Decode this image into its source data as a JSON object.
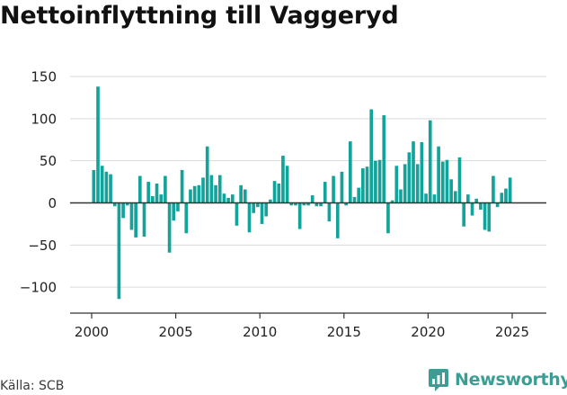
{
  "title": "Nettoinflyttning till Vaggeryd",
  "source": "Källa: SCB",
  "brand": {
    "name": "Newsworthy",
    "icon": "newsworthy-logo-icon"
  },
  "colors": {
    "bar": "#12a39a",
    "grid": "#d9d9d9",
    "zero": "#333333",
    "axis": "#333333"
  },
  "chart_data": {
    "type": "bar",
    "title": "Nettoinflyttning till Vaggeryd",
    "xlabel": "",
    "ylabel": "",
    "ylim": [
      -130,
      160
    ],
    "xlim": [
      1998.9,
      2026.6
    ],
    "yticks": [
      150,
      100,
      50,
      0,
      -50,
      -100
    ],
    "ytick_labels": [
      "150",
      "100",
      "50",
      "0",
      "−50",
      "−100"
    ],
    "xticks": [
      2000,
      2005,
      2010,
      2015,
      2020,
      2025
    ],
    "xtick_labels": [
      "2000",
      "2005",
      "2010",
      "2015",
      "2020",
      "2025"
    ],
    "grid": true,
    "x_unit": "quarter",
    "start_year": 2000,
    "values": [
      39,
      138,
      44,
      37,
      34,
      -4,
      -114,
      -18,
      -3,
      -32,
      -41,
      32,
      -40,
      25,
      8,
      23,
      10,
      32,
      -59,
      -21,
      -10,
      39,
      -36,
      16,
      20,
      21,
      30,
      67,
      33,
      21,
      33,
      11,
      6,
      10,
      -27,
      21,
      16,
      -35,
      -12,
      -5,
      -25,
      -16,
      4,
      26,
      23,
      56,
      44,
      -3,
      -3,
      -31,
      -3,
      -3,
      9,
      -4,
      -4,
      25,
      -22,
      32,
      -42,
      37,
      -3,
      73,
      7,
      18,
      41,
      43,
      111,
      50,
      51,
      104,
      -36,
      3,
      44,
      16,
      46,
      60,
      73,
      46,
      72,
      11,
      98,
      10,
      67,
      49,
      51,
      28,
      14,
      54,
      -28,
      10,
      -15,
      5,
      -8,
      -32,
      -34,
      32,
      -5,
      12,
      17,
      30
    ]
  }
}
